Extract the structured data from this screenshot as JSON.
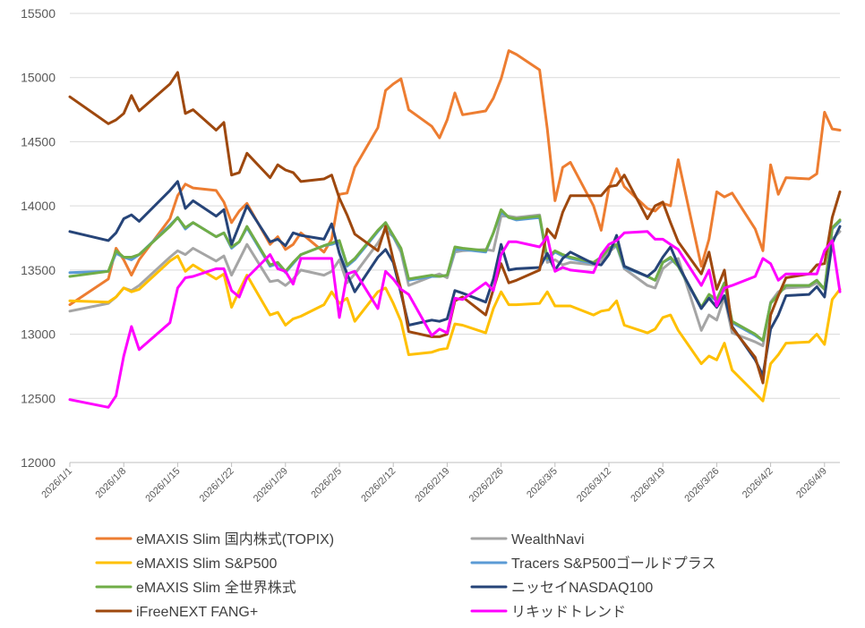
{
  "chart_data": {
    "type": "line",
    "title": "",
    "xlabel": "",
    "ylabel": "",
    "ylim": [
      12000,
      15500
    ],
    "yticks": [
      12000,
      12500,
      13000,
      13500,
      14000,
      14500,
      15000,
      15500
    ],
    "ytick_labels": [
      "12000",
      "12500",
      "13000",
      "13500",
      "14000",
      "14500",
      "15000",
      "15500"
    ],
    "x_range_days": [
      0,
      100
    ],
    "xtick_days": [
      0,
      7,
      14,
      21,
      28,
      35,
      42,
      49,
      56,
      63,
      70,
      77,
      84,
      91,
      98
    ],
    "xtick_labels": [
      "2026/1/1",
      "2026/1/8",
      "2026/1/15",
      "2026/1/22",
      "2026/1/29",
      "2026/2/5",
      "2026/2/12",
      "2026/2/19",
      "2026/2/26",
      "2026/3/5",
      "2026/3/12",
      "2026/3/19",
      "2026/3/26",
      "2026/4/2",
      "2026/4/9"
    ],
    "legend_position": "bottom",
    "grid": true,
    "x": [
      0,
      5,
      6,
      7,
      8,
      9,
      13,
      14,
      15,
      16,
      19,
      20,
      21,
      22,
      23,
      26,
      27,
      28,
      29,
      30,
      33,
      34,
      35,
      36,
      37,
      40,
      41,
      42,
      43,
      44,
      47,
      48,
      49,
      50,
      51,
      54,
      55,
      56,
      57,
      58,
      61,
      62,
      63,
      64,
      65,
      68,
      69,
      70,
      71,
      72,
      75,
      76,
      77,
      78,
      79,
      82,
      83,
      84,
      85,
      86,
      89,
      90,
      91,
      92,
      93,
      96,
      97,
      98,
      99,
      100
    ],
    "series": [
      {
        "name": "eMAXIS Slim 国内株式(TOPIX)",
        "color": "#ED7D31",
        "values": [
          13230,
          13430,
          13670,
          13580,
          13460,
          13580,
          13900,
          14080,
          14170,
          14140,
          14120,
          14030,
          13870,
          13960,
          14020,
          13700,
          13760,
          13660,
          13700,
          13790,
          13640,
          13740,
          14090,
          14100,
          14300,
          14610,
          14900,
          14950,
          14990,
          14750,
          14620,
          14530,
          14670,
          14880,
          14710,
          14740,
          14840,
          14990,
          15210,
          15180,
          15060,
          14600,
          14040,
          14300,
          14340,
          14000,
          13810,
          14140,
          14290,
          14150,
          13980,
          13960,
          14020,
          14000,
          14360,
          13530,
          13740,
          14110,
          14070,
          14100,
          13820,
          13650,
          14320,
          14090,
          14220,
          14210,
          14250,
          14730,
          14600,
          14590
        ]
      },
      {
        "name": "WealthNavi",
        "color": "#A5A5A5",
        "values": [
          13180,
          13240,
          13290,
          13360,
          13340,
          13380,
          13600,
          13650,
          13620,
          13670,
          13570,
          13610,
          13460,
          13580,
          13700,
          13410,
          13420,
          13380,
          13430,
          13500,
          13460,
          13490,
          13580,
          13400,
          13470,
          13710,
          13810,
          13760,
          13640,
          13380,
          13450,
          13470,
          13440,
          13640,
          13650,
          13660,
          13650,
          13920,
          13920,
          13910,
          13930,
          13560,
          13580,
          13540,
          13560,
          13540,
          13570,
          13640,
          13690,
          13510,
          13380,
          13360,
          13510,
          13560,
          13590,
          13030,
          13150,
          13110,
          13290,
          13010,
          12940,
          12910,
          13250,
          13330,
          13360,
          13370,
          13400,
          13350,
          13740,
          13800
        ]
      },
      {
        "name": "eMAXIS Slim S&P500",
        "color": "#FFC000",
        "values": [
          13260,
          13250,
          13290,
          13360,
          13330,
          13350,
          13570,
          13610,
          13490,
          13540,
          13430,
          13470,
          13210,
          13340,
          13460,
          13150,
          13170,
          13070,
          13120,
          13140,
          13230,
          13330,
          13240,
          13280,
          13100,
          13330,
          13360,
          13240,
          13100,
          12840,
          12860,
          12880,
          12890,
          13080,
          13070,
          13010,
          13200,
          13330,
          13230,
          13230,
          13240,
          13330,
          13220,
          13220,
          13220,
          13150,
          13180,
          13190,
          13260,
          13070,
          13010,
          13040,
          13130,
          13150,
          13030,
          12770,
          12830,
          12800,
          12930,
          12720,
          12540,
          12480,
          12770,
          12840,
          12930,
          12940,
          13000,
          12920,
          13270,
          13350
        ]
      },
      {
        "name": "Tracers S&P500ゴールドプラス",
        "color": "#5B9BD5",
        "values": [
          13480,
          13490,
          13630,
          13600,
          13580,
          13620,
          13850,
          13910,
          13820,
          13870,
          13760,
          13790,
          13670,
          13720,
          13830,
          13530,
          13550,
          13480,
          13550,
          13620,
          13690,
          13700,
          13720,
          13530,
          13580,
          13800,
          13870,
          13760,
          13660,
          13420,
          13450,
          13450,
          13460,
          13660,
          13660,
          13640,
          13790,
          13950,
          13910,
          13890,
          13910,
          13580,
          13640,
          13610,
          13590,
          13550,
          13600,
          13670,
          13690,
          13520,
          13450,
          13420,
          13560,
          13590,
          13530,
          13200,
          13300,
          13260,
          13400,
          13090,
          12990,
          12950,
          13240,
          13310,
          13380,
          13380,
          13420,
          13350,
          13820,
          13880
        ]
      },
      {
        "name": "eMAXIS Slim 全世界株式",
        "color": "#70AD47",
        "values": [
          13450,
          13490,
          13650,
          13600,
          13600,
          13620,
          13840,
          13910,
          13830,
          13870,
          13760,
          13790,
          13680,
          13720,
          13840,
          13540,
          13560,
          13490,
          13560,
          13620,
          13690,
          13710,
          13730,
          13540,
          13590,
          13810,
          13870,
          13770,
          13670,
          13430,
          13460,
          13450,
          13460,
          13680,
          13670,
          13650,
          13790,
          13970,
          13910,
          13900,
          13920,
          13590,
          13650,
          13620,
          13600,
          13560,
          13600,
          13670,
          13700,
          13530,
          13450,
          13420,
          13560,
          13600,
          13530,
          13210,
          13310,
          13270,
          13400,
          13100,
          13000,
          12950,
          13240,
          13310,
          13380,
          13380,
          13420,
          13350,
          13830,
          13890
        ]
      },
      {
        "name": "ニッセイNASDAQ100",
        "color": "#264478",
        "values": [
          13800,
          13730,
          13790,
          13900,
          13930,
          13880,
          14120,
          14190,
          13980,
          14040,
          13920,
          13970,
          13700,
          13850,
          14000,
          13720,
          13740,
          13690,
          13790,
          13770,
          13740,
          13860,
          13630,
          13470,
          13330,
          13600,
          13660,
          13560,
          13320,
          13070,
          13110,
          13100,
          13120,
          13340,
          13320,
          13250,
          13430,
          13700,
          13500,
          13510,
          13520,
          13630,
          13500,
          13590,
          13640,
          13550,
          13540,
          13620,
          13770,
          13530,
          13450,
          13500,
          13600,
          13680,
          13540,
          13200,
          13280,
          13210,
          13300,
          13060,
          12800,
          12680,
          13040,
          13150,
          13300,
          13310,
          13370,
          13290,
          13710,
          13840
        ]
      },
      {
        "name": "iFreeNEXT FANG+",
        "color": "#9E480E",
        "values": [
          14850,
          14640,
          14670,
          14720,
          14860,
          14740,
          14950,
          15040,
          14720,
          14750,
          14590,
          14650,
          14240,
          14260,
          14410,
          14220,
          14320,
          14280,
          14260,
          14190,
          14210,
          14240,
          14060,
          13930,
          13780,
          13650,
          13840,
          13580,
          13350,
          13020,
          12980,
          12980,
          13000,
          13260,
          13290,
          13150,
          13350,
          13550,
          13400,
          13420,
          13500,
          13820,
          13750,
          13950,
          14080,
          14080,
          14080,
          14150,
          14160,
          14240,
          13900,
          14000,
          14030,
          13870,
          13720,
          13470,
          13640,
          13350,
          13500,
          13050,
          12820,
          12620,
          13150,
          13300,
          13440,
          13470,
          13540,
          13550,
          13910,
          14110
        ]
      },
      {
        "name": "リキッドトレンド",
        "color": "#FF00FF",
        "values": [
          12490,
          12430,
          12520,
          12830,
          13060,
          12880,
          13090,
          13360,
          13440,
          13450,
          13510,
          13510,
          13340,
          13290,
          13440,
          13620,
          13510,
          13490,
          13390,
          13590,
          13590,
          13590,
          13130,
          13470,
          13490,
          13200,
          13490,
          13430,
          13350,
          13310,
          12990,
          13040,
          13010,
          13280,
          13270,
          13400,
          13340,
          13620,
          13720,
          13720,
          13680,
          13760,
          13490,
          13520,
          13500,
          13480,
          13620,
          13700,
          13730,
          13790,
          13800,
          13740,
          13740,
          13700,
          13660,
          13380,
          13500,
          13220,
          13360,
          13380,
          13450,
          13590,
          13550,
          13420,
          13470,
          13470,
          13470,
          13650,
          13730,
          13330
        ]
      }
    ]
  }
}
